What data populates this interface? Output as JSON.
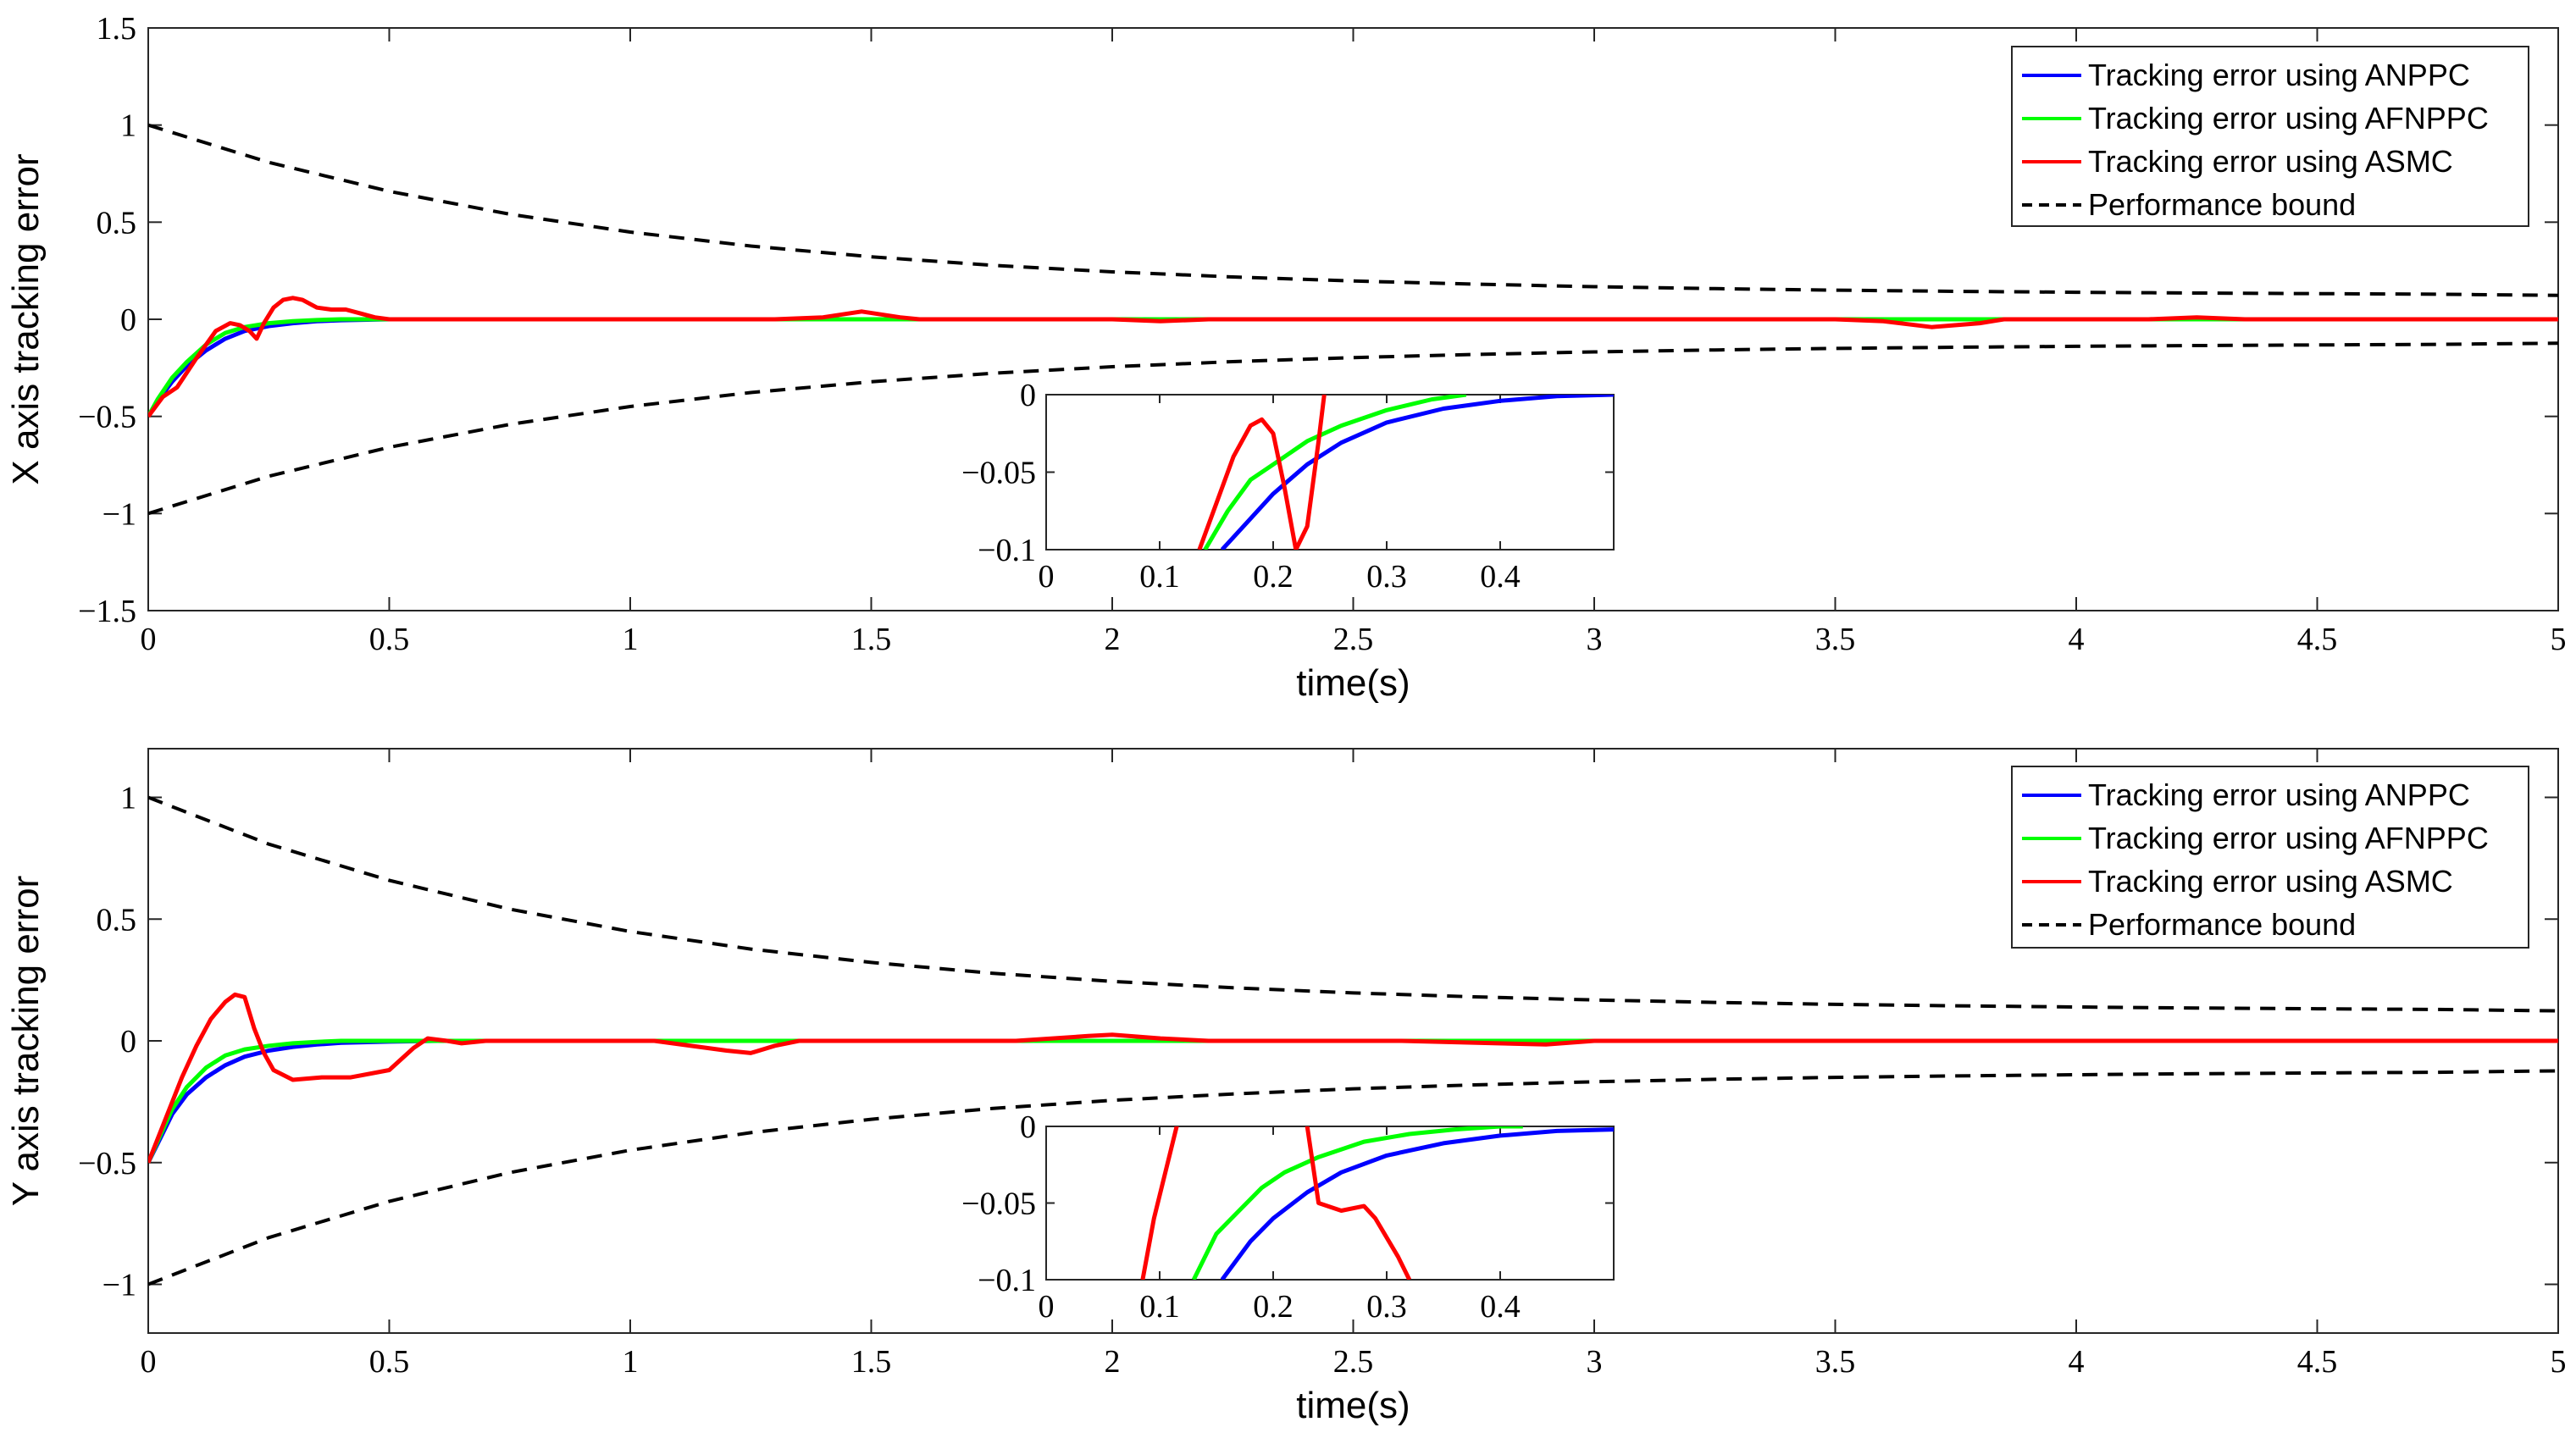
{
  "chart_data": [
    {
      "type": "line",
      "id": "x",
      "xlabel": "time(s)",
      "ylabel": "X axis tracking error",
      "xlim": [
        0,
        5
      ],
      "ylim": [
        -1.5,
        1.5
      ],
      "xticks": [
        0,
        0.5,
        1,
        1.5,
        2,
        2.5,
        3,
        3.5,
        4,
        4.5,
        5
      ],
      "xtick_labels": [
        "0",
        "0.5",
        "1",
        "1.5",
        "2",
        "2.5",
        "3",
        "3.5",
        "4",
        "4.5",
        "5"
      ],
      "yticks": [
        -1.5,
        -1,
        -0.5,
        0,
        0.5,
        1,
        1.5
      ],
      "ytick_labels": [
        "−1.5",
        "−1",
        "−0.5",
        "0",
        "0.5",
        "1",
        "1.5"
      ],
      "legend_position": "top-right",
      "series": [
        {
          "name": "Tracking error using ANPPC",
          "color": "#0000ff",
          "style": "solid",
          "x": [
            0,
            0.02,
            0.05,
            0.08,
            0.12,
            0.16,
            0.2,
            0.25,
            0.3,
            0.35,
            0.4,
            0.5,
            0.6,
            1,
            2,
            3,
            4,
            5
          ],
          "y": [
            -0.5,
            -0.42,
            -0.32,
            -0.24,
            -0.16,
            -0.1,
            -0.06,
            -0.035,
            -0.02,
            -0.01,
            -0.005,
            0,
            0,
            0,
            0,
            0,
            0,
            0
          ]
        },
        {
          "name": "Tracking error using AFNPPC",
          "color": "#00ff00",
          "style": "solid",
          "x": [
            0,
            0.02,
            0.05,
            0.08,
            0.12,
            0.16,
            0.2,
            0.25,
            0.3,
            0.35,
            0.4,
            0.5,
            1,
            2,
            3,
            4,
            5
          ],
          "y": [
            -0.5,
            -0.41,
            -0.3,
            -0.22,
            -0.13,
            -0.07,
            -0.04,
            -0.02,
            -0.01,
            -0.004,
            0,
            0,
            0,
            0,
            0,
            0,
            0
          ]
        },
        {
          "name": "Tracking error using ASMC",
          "color": "#ff0000",
          "style": "solid",
          "x": [
            0,
            0.03,
            0.06,
            0.1,
            0.14,
            0.17,
            0.19,
            0.21,
            0.225,
            0.24,
            0.26,
            0.28,
            0.3,
            0.32,
            0.35,
            0.38,
            0.41,
            0.44,
            0.47,
            0.5,
            0.6,
            1.0,
            1.3,
            1.4,
            1.48,
            1.56,
            1.6,
            1.8,
            2.0,
            2.1,
            2.2,
            3.5,
            3.6,
            3.7,
            3.8,
            3.85,
            4.0,
            4.15,
            4.25,
            4.35,
            4.5,
            5
          ],
          "y": [
            -0.5,
            -0.4,
            -0.35,
            -0.2,
            -0.06,
            -0.02,
            -0.03,
            -0.06,
            -0.1,
            -0.02,
            0.06,
            0.1,
            0.11,
            0.1,
            0.06,
            0.05,
            0.05,
            0.03,
            0.01,
            0,
            0,
            0,
            0,
            0.01,
            0.04,
            0.01,
            0,
            0,
            0,
            -0.01,
            0,
            0,
            -0.01,
            -0.04,
            -0.02,
            0,
            0,
            0,
            0.01,
            0,
            0,
            0
          ]
        },
        {
          "name": "Performance bound",
          "color": "#000000",
          "style": "dashed",
          "bound": true,
          "x": [
            0,
            0.25,
            0.5,
            0.75,
            1,
            1.25,
            1.5,
            1.75,
            2,
            2.25,
            2.5,
            2.75,
            3,
            3.25,
            3.5,
            3.75,
            4,
            4.25,
            4.5,
            4.75,
            5
          ],
          "y": [
            1.0,
            0.808,
            0.659,
            0.541,
            0.449,
            0.377,
            0.322,
            0.278,
            0.244,
            0.218,
            0.197,
            0.181,
            0.168,
            0.158,
            0.15,
            0.144,
            0.139,
            0.135,
            0.132,
            0.129,
            0.123
          ]
        }
      ],
      "inset": {
        "xlim": [
          0,
          0.5
        ],
        "ylim": [
          -0.1,
          0
        ],
        "xticks": [
          0,
          0.1,
          0.2,
          0.3,
          0.4
        ],
        "xtick_labels": [
          "0",
          "0.1",
          "0.2",
          "0.3",
          "0.4"
        ],
        "yticks": [
          -0.1,
          -0.05,
          0
        ],
        "ytick_labels": [
          "−0.1",
          "−0.05",
          "0"
        ],
        "series": [
          {
            "name": "ANPPC",
            "color": "#0000ff",
            "x": [
              0.155,
              0.18,
              0.2,
              0.23,
              0.26,
              0.3,
              0.35,
              0.4,
              0.45,
              0.5
            ],
            "y": [
              -0.1,
              -0.08,
              -0.064,
              -0.045,
              -0.031,
              -0.018,
              -0.009,
              -0.004,
              -0.001,
              0
            ]
          },
          {
            "name": "AFNPPC",
            "color": "#00ff00",
            "x": [
              0.14,
              0.16,
              0.18,
              0.2,
              0.23,
              0.26,
              0.3,
              0.34,
              0.37
            ],
            "y": [
              -0.1,
              -0.075,
              -0.055,
              -0.045,
              -0.03,
              -0.02,
              -0.01,
              -0.003,
              0
            ]
          },
          {
            "name": "ASMC",
            "color": "#ff0000",
            "x": [
              0.135,
              0.15,
              0.165,
              0.18,
              0.19,
              0.2,
              0.21,
              0.22,
              0.23,
              0.24,
              0.245
            ],
            "y": [
              -0.1,
              -0.07,
              -0.04,
              -0.02,
              -0.016,
              -0.025,
              -0.06,
              -0.1,
              -0.085,
              -0.03,
              0
            ]
          }
        ]
      }
    },
    {
      "type": "line",
      "id": "y",
      "xlabel": "time(s)",
      "ylabel": "Y axis tracking error",
      "xlim": [
        0,
        5
      ],
      "ylim": [
        -1.2,
        1.2
      ],
      "xticks": [
        0,
        0.5,
        1,
        1.5,
        2,
        2.5,
        3,
        3.5,
        4,
        4.5,
        5
      ],
      "xtick_labels": [
        "0",
        "0.5",
        "1",
        "1.5",
        "2",
        "2.5",
        "3",
        "3.5",
        "4",
        "4.5",
        "5"
      ],
      "yticks": [
        -1,
        -0.5,
        0,
        0.5,
        1
      ],
      "ytick_labels": [
        "−1",
        "−0.5",
        "0",
        "0.5",
        "1"
      ],
      "legend_position": "top-right",
      "series": [
        {
          "name": "Tracking error using ANPPC",
          "color": "#0000ff",
          "style": "solid",
          "x": [
            0,
            0.02,
            0.05,
            0.08,
            0.12,
            0.16,
            0.2,
            0.25,
            0.3,
            0.35,
            0.4,
            0.5,
            0.6,
            1,
            2,
            3,
            4,
            5
          ],
          "y": [
            -0.5,
            -0.42,
            -0.3,
            -0.22,
            -0.15,
            -0.1,
            -0.065,
            -0.04,
            -0.025,
            -0.015,
            -0.008,
            -0.003,
            0,
            0,
            0,
            0,
            0,
            0
          ]
        },
        {
          "name": "Tracking error using AFNPPC",
          "color": "#00ff00",
          "style": "solid",
          "x": [
            0,
            0.02,
            0.05,
            0.08,
            0.12,
            0.16,
            0.2,
            0.25,
            0.3,
            0.35,
            0.4,
            0.5,
            1,
            2,
            3,
            4,
            5
          ],
          "y": [
            -0.5,
            -0.41,
            -0.28,
            -0.19,
            -0.11,
            -0.06,
            -0.035,
            -0.02,
            -0.01,
            -0.004,
            0,
            0,
            0,
            0,
            0,
            0,
            0
          ]
        },
        {
          "name": "Tracking error using ASMC",
          "color": "#ff0000",
          "style": "solid",
          "x": [
            0,
            0.03,
            0.07,
            0.1,
            0.13,
            0.16,
            0.18,
            0.2,
            0.22,
            0.24,
            0.26,
            0.3,
            0.36,
            0.42,
            0.5,
            0.55,
            0.58,
            0.62,
            0.65,
            0.7,
            0.9,
            1.05,
            1.2,
            1.25,
            1.3,
            1.35,
            1.6,
            1.8,
            1.95,
            2.0,
            2.1,
            2.2,
            2.6,
            2.8,
            2.9,
            3.0,
            3.5,
            4.5,
            5
          ],
          "y": [
            -0.5,
            -0.35,
            -0.15,
            -0.02,
            0.09,
            0.16,
            0.19,
            0.18,
            0.05,
            -0.05,
            -0.12,
            -0.16,
            -0.15,
            -0.15,
            -0.12,
            -0.03,
            0.01,
            0.0,
            -0.01,
            0,
            0,
            0,
            -0.04,
            -0.05,
            -0.02,
            0,
            0,
            0,
            0.02,
            0.025,
            0.01,
            0,
            0,
            -0.01,
            -0.015,
            0,
            0,
            0,
            0
          ]
        },
        {
          "name": "Performance bound",
          "color": "#000000",
          "style": "dashed",
          "bound": true,
          "x": [
            0,
            0.25,
            0.5,
            0.75,
            1,
            1.25,
            1.5,
            1.75,
            2,
            2.25,
            2.5,
            2.75,
            3,
            3.25,
            3.5,
            3.75,
            4,
            4.25,
            4.5,
            4.75,
            5
          ],
          "y": [
            1.0,
            0.808,
            0.659,
            0.541,
            0.449,
            0.377,
            0.322,
            0.278,
            0.244,
            0.218,
            0.197,
            0.181,
            0.168,
            0.158,
            0.15,
            0.144,
            0.139,
            0.135,
            0.132,
            0.129,
            0.123
          ]
        }
      ],
      "inset": {
        "xlim": [
          0,
          0.5
        ],
        "ylim": [
          -0.1,
          0
        ],
        "xticks": [
          0,
          0.1,
          0.2,
          0.3,
          0.4
        ],
        "xtick_labels": [
          "0",
          "0.1",
          "0.2",
          "0.3",
          "0.4"
        ],
        "yticks": [
          -0.1,
          -0.05,
          0
        ],
        "ytick_labels": [
          "−0.1",
          "−0.05",
          "0"
        ],
        "series": [
          {
            "name": "ANPPC",
            "color": "#0000ff",
            "x": [
              0.155,
              0.18,
              0.2,
              0.23,
              0.26,
              0.3,
              0.35,
              0.4,
              0.45,
              0.5
            ],
            "y": [
              -0.1,
              -0.075,
              -0.06,
              -0.043,
              -0.03,
              -0.019,
              -0.011,
              -0.006,
              -0.003,
              -0.002
            ]
          },
          {
            "name": "AFNPPC",
            "color": "#00ff00",
            "x": [
              0.13,
              0.15,
              0.17,
              0.19,
              0.21,
              0.24,
              0.28,
              0.32,
              0.36,
              0.4,
              0.42
            ],
            "y": [
              -0.1,
              -0.07,
              -0.055,
              -0.04,
              -0.03,
              -0.02,
              -0.01,
              -0.005,
              -0.002,
              0,
              0
            ]
          },
          {
            "name": "ASMC",
            "color": "#ff0000",
            "x": [
              0.085,
              0.095,
              0.105,
              0.115,
              0.135,
              0.22,
              0.23,
              0.24,
              0.26,
              0.28,
              0.29,
              0.31,
              0.32
            ],
            "y": [
              -0.1,
              -0.06,
              -0.03,
              0,
              0.05,
              0.05,
              0,
              -0.05,
              -0.055,
              -0.052,
              -0.06,
              -0.085,
              -0.1
            ]
          }
        ]
      }
    }
  ]
}
